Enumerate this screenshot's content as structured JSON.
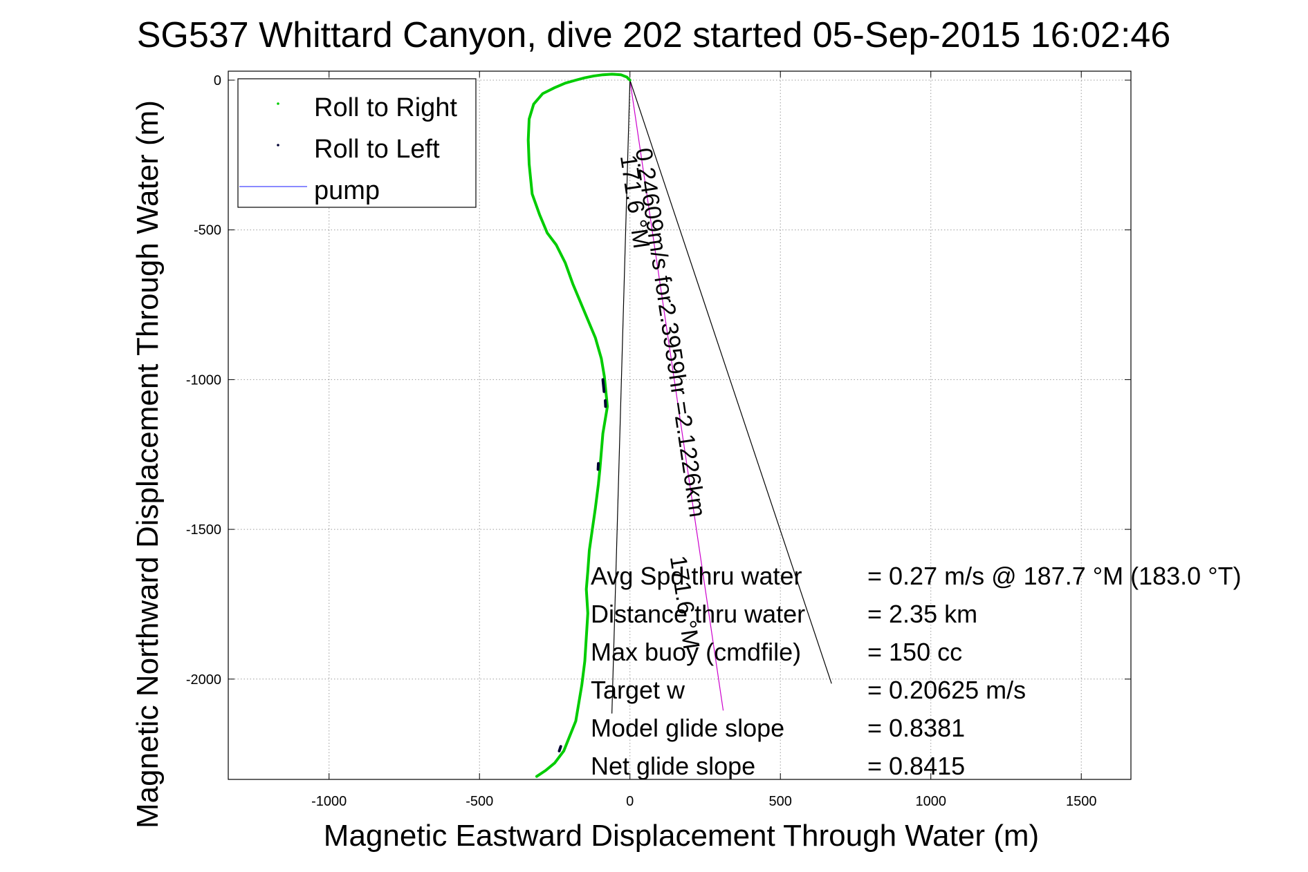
{
  "chart_data": {
    "type": "line",
    "title": "SG537 Whittard Canyon, dive 202 started 05-Sep-2015 16:02:46",
    "xlabel": "Magnetic Eastward Displacement Through Water (m)",
    "ylabel": "Magnetic Northward Displacement Through Water (m)",
    "xlim": [
      -1335,
      1665
    ],
    "ylim": [
      -2335,
      30
    ],
    "xticks": [
      -1000,
      -500,
      0,
      500,
      1000,
      1500
    ],
    "yticks": [
      0,
      -500,
      -1000,
      -1500,
      -2000
    ],
    "xtick_labels": [
      "-1000",
      "-500",
      "0",
      "500",
      "1000",
      "1500"
    ],
    "ytick_labels": [
      "0",
      "-500",
      "-1000",
      "-1500",
      "-2000"
    ],
    "grid": true,
    "legend_position": "top-left",
    "series": [
      {
        "name": "Roll to Right",
        "color": "#00cc00",
        "x": [
          0,
          -10,
          -30,
          -60,
          -90,
          -120,
          -150,
          -180,
          -215,
          -250,
          -290,
          -320,
          -335,
          -338,
          -335,
          -325,
          -300,
          -275,
          -245,
          -215,
          -190,
          -165,
          -140,
          -115,
          -95,
          -85,
          -75,
          -90,
          -100,
          -105,
          -115,
          -125,
          -135,
          -140,
          -145,
          -140,
          -145,
          -150,
          -160,
          -170,
          -180,
          -200,
          -220,
          -250,
          -280,
          -310
        ],
        "y": [
          0,
          10,
          18,
          20,
          18,
          14,
          8,
          0,
          -10,
          -25,
          -45,
          -80,
          -130,
          -200,
          -280,
          -380,
          -450,
          -510,
          -550,
          -610,
          -680,
          -740,
          -800,
          -860,
          -930,
          -990,
          -1090,
          -1180,
          -1300,
          -1350,
          -1430,
          -1500,
          -1570,
          -1640,
          -1700,
          -1780,
          -1860,
          -1940,
          -2020,
          -2080,
          -2140,
          -2190,
          -2240,
          -2280,
          -2305,
          -2325
        ]
      },
      {
        "name": "Roll to Left",
        "color": "#000033",
        "segments": [
          {
            "x": [
              -90,
              -88,
              -86
            ],
            "y": [
              -1000,
              -1020,
              -1040
            ]
          },
          {
            "x": [
              -82,
              -81
            ],
            "y": [
              -1070,
              -1090
            ]
          },
          {
            "x": [
              -105,
              -106
            ],
            "y": [
              -1280,
              -1300
            ]
          },
          {
            "x": [
              -230,
              -235
            ],
            "y": [
              -2225,
              -2240
            ]
          }
        ]
      },
      {
        "name": "pump",
        "color": "#4444ff",
        "x": [],
        "y": []
      }
    ],
    "reference_lines": [
      {
        "x": [
          0,
          310
        ],
        "y": [
          0,
          -2105
        ],
        "color": "#cc00cc"
      },
      {
        "x": [
          0,
          -60
        ],
        "y": [
          0,
          -2115
        ],
        "color": "#000000"
      },
      {
        "x": [
          0,
          670
        ],
        "y": [
          0,
          -2015
        ],
        "color": "#000000"
      }
    ],
    "annotations": {
      "track_text_1": "0.24609m/s for2.3959hr =2.1226km",
      "track_text_2": "171.6 °M",
      "track_text_3": "171.6 °M",
      "stats_labels": [
        "Avg Spd thru water",
        "Distance thru water",
        "Max buoy (cmdfile)",
        "Target w",
        "Model glide slope",
        "Net glide slope"
      ],
      "stats_values": [
        "=  0.27 m/s @ 187.7 °M (183.0 °T)",
        "=  2.35 km",
        "= 150 cc",
        "= 0.20625 m/s",
        "= 0.8381",
        "= 0.8415"
      ]
    }
  }
}
